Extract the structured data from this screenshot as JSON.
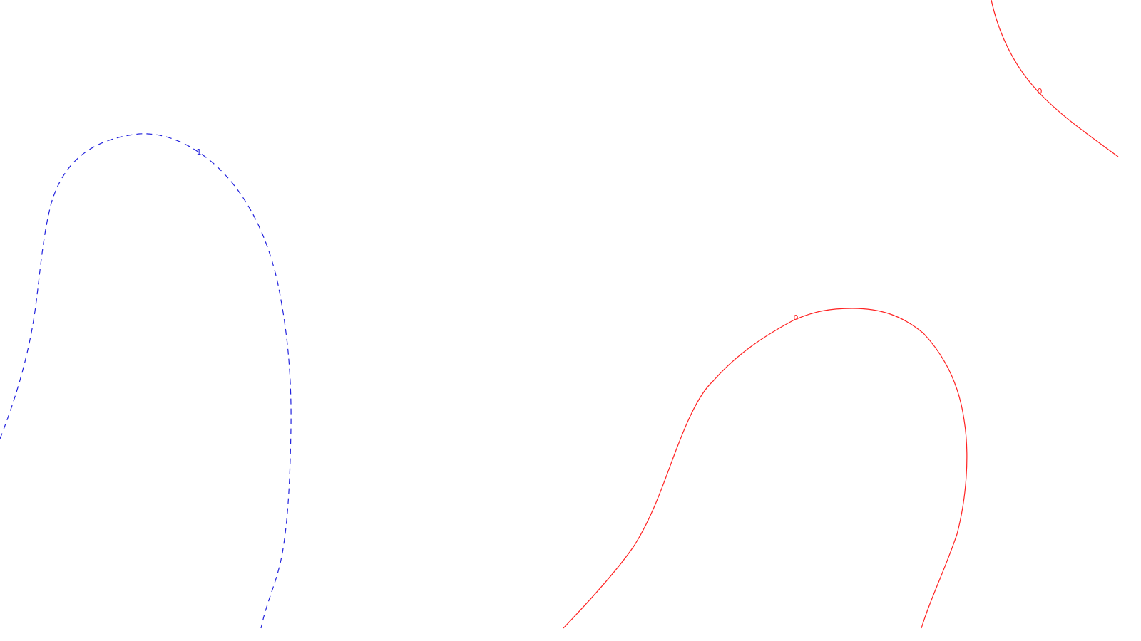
{
  "chart_data": {
    "type": "contour",
    "title": "",
    "xlabel": "",
    "ylabel": "",
    "grid": false,
    "legend": "none",
    "levels": [
      {
        "name": "contour-level-1",
        "label": "1",
        "style": "dashed",
        "color": "#2222dd",
        "label_count": 1
      },
      {
        "name": "contour-level-0-lower",
        "label": "0",
        "style": "solid",
        "color": "#ff2222",
        "label_count": 1
      },
      {
        "name": "contour-level-0-upper-right",
        "label": "0",
        "style": "solid",
        "color": "#ff2222",
        "label_count": 1
      }
    ]
  }
}
